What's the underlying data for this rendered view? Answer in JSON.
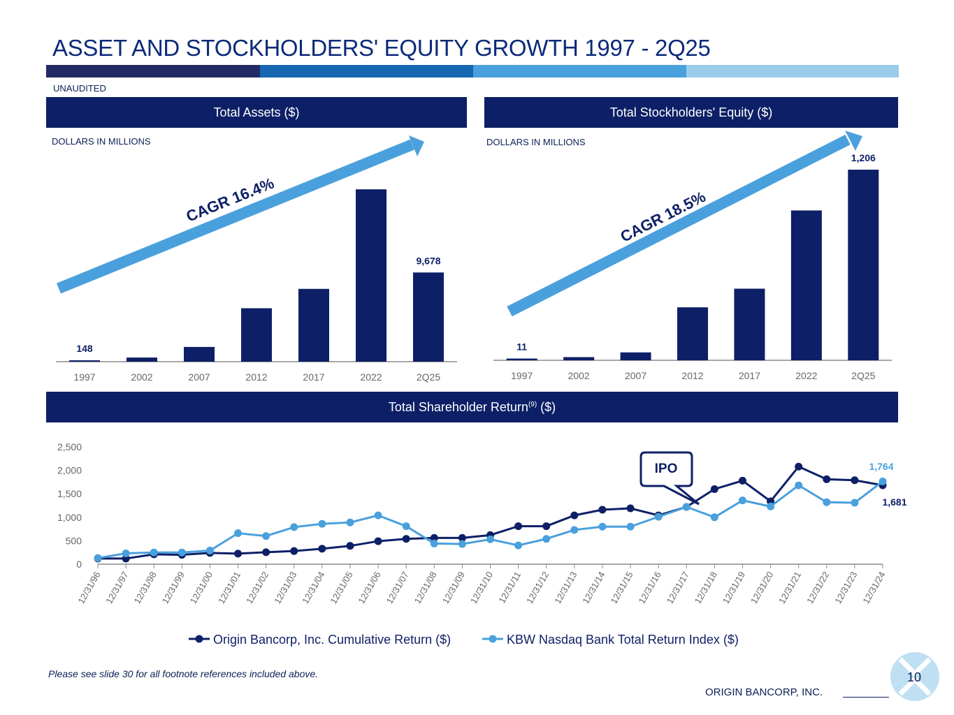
{
  "title": "ASSET AND STOCKHOLDERS' EQUITY GROWTH 1997 - 2Q25",
  "unaudited": "UNAUDITED",
  "colors": {
    "navy": "#0d1f66",
    "mid_blue": "#1766b2",
    "light_blue": "#4aa0dc",
    "pale_blue": "#9cccec",
    "dark_navy": "#222b63"
  },
  "chart_data": [
    {
      "type": "bar",
      "title": "Total Assets ($)",
      "units_label": "DOLLARS IN MILLIONS",
      "categories": [
        "1997",
        "2002",
        "2007",
        "2012",
        "2017",
        "2022",
        "2Q25"
      ],
      "values": [
        148,
        450,
        1600,
        5800,
        7900,
        18700,
        9678
      ],
      "value_labels": [
        "148",
        "",
        "",
        "",
        "",
        "",
        "9,678"
      ],
      "ylim": [
        0,
        20000
      ],
      "annotation": "CAGR 16.4%"
    },
    {
      "type": "bar",
      "title": "Total Stockholders' Equity ($)",
      "units_label": "DOLLARS IN MILLIONS",
      "categories": [
        "1997",
        "2002",
        "2007",
        "2012",
        "2017",
        "2022",
        "2Q25"
      ],
      "values": [
        11,
        20,
        50,
        335,
        453,
        948,
        1206
      ],
      "value_labels": [
        "11",
        "",
        "",
        "",
        "",
        "",
        "1,206"
      ],
      "ylim": [
        0,
        1206
      ],
      "annotation": "CAGR 18.5%"
    },
    {
      "type": "line",
      "title_main": "Total Shareholder Return",
      "title_sup": "(9)",
      "title_suffix": " ($)",
      "x": [
        "12/31/96",
        "12/31/97",
        "12/31/98",
        "12/31/99",
        "12/31/00",
        "12/31/01",
        "12/31/02",
        "12/31/03",
        "12/31/04",
        "12/31/05",
        "12/31/06",
        "12/31/07",
        "12/31/08",
        "12/31/09",
        "12/31/10",
        "12/31/11",
        "12/31/12",
        "12/31/13",
        "12/31/14",
        "12/31/15",
        "12/31/16",
        "12/31/17",
        "12/31/18",
        "12/31/19",
        "12/31/20",
        "12/31/21",
        "12/31/22",
        "12/31/23",
        "12/31/24"
      ],
      "series": [
        {
          "name": "Origin Bancorp, Inc. Cumulative Return ($)",
          "color": "#0d1f66",
          "values": [
            120,
            120,
            210,
            200,
            240,
            225,
            255,
            280,
            330,
            390,
            490,
            540,
            560,
            560,
            620,
            810,
            810,
            1040,
            1160,
            1190,
            1040,
            1220,
            1600,
            1780,
            1340,
            2080,
            1810,
            1790,
            1681
          ]
        },
        {
          "name": "KBW Nasdaq Bank Total Return Index ($)",
          "color": "#4aa0dc",
          "values": [
            130,
            230,
            250,
            250,
            290,
            660,
            600,
            790,
            860,
            890,
            1040,
            810,
            440,
            430,
            530,
            400,
            540,
            730,
            800,
            800,
            1010,
            1220,
            1000,
            1360,
            1230,
            1680,
            1320,
            1310,
            1764
          ]
        }
      ],
      "y_ticks": [
        "0",
        "500",
        "1,000",
        "1,500",
        "2,000",
        "2,500"
      ],
      "ylim": [
        0,
        2500
      ],
      "end_labels": [
        "1,681",
        "1,764"
      ],
      "callout": "IPO"
    }
  ],
  "footnote": "Please see slide 30 for all footnote references included above.",
  "company": "ORIGIN BANCORP, INC.",
  "page_number": "10"
}
